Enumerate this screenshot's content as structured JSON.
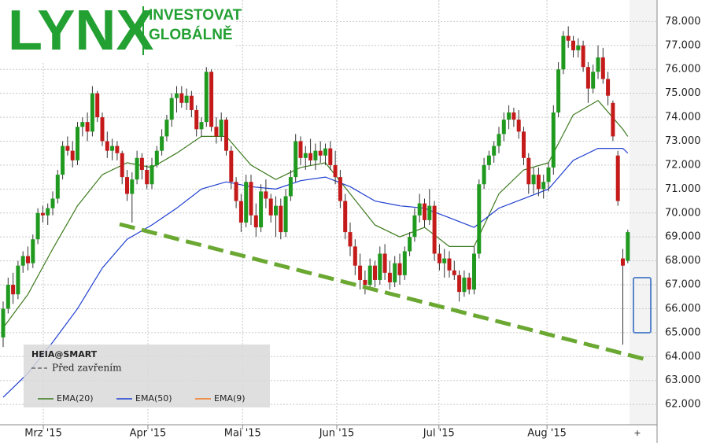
{
  "brand": {
    "logo": "LYNX",
    "tagline_1": "INVESTOVAT",
    "tagline_2": "GLOBÁLNĚ"
  },
  "chart_data": {
    "type": "candlestick",
    "legend_title": "HEIA@SMART",
    "legend_subtitle": "Před zavřením",
    "ylim": [
      61.15,
      78.9
    ],
    "yticks": [
      {
        "value": 62,
        "label": "62.000"
      },
      {
        "value": 63,
        "label": "63.000"
      },
      {
        "value": 64,
        "label": "64.000"
      },
      {
        "value": 65,
        "label": "65.000"
      },
      {
        "value": 66,
        "label": "66.000"
      },
      {
        "value": 67,
        "label": "67.000"
      },
      {
        "value": 68,
        "label": "68.000"
      },
      {
        "value": 69,
        "label": "69.000"
      },
      {
        "value": 70,
        "label": "70.000"
      },
      {
        "value": 71,
        "label": "71.000"
      },
      {
        "value": 72,
        "label": "72.000"
      },
      {
        "value": 73,
        "label": "73.000"
      },
      {
        "value": 74,
        "label": "74.000"
      },
      {
        "value": 75,
        "label": "75.000"
      },
      {
        "value": 76,
        "label": "76.000"
      },
      {
        "value": 77,
        "label": "77.000"
      },
      {
        "value": 78,
        "label": "78.000"
      }
    ],
    "xticks": [
      {
        "value": 8.1,
        "label": "Mrz '15"
      },
      {
        "value": 29.2,
        "label": "Apr '15"
      },
      {
        "value": 48.3,
        "label": "Mai '15"
      },
      {
        "value": 67.3,
        "label": "Jun '15"
      },
      {
        "value": 87.9,
        "label": "Jul '15"
      },
      {
        "value": 109.7,
        "label": "Aug '15"
      }
    ],
    "grid": true,
    "up_color": "#1f9a1f",
    "down_color": "#c41a1a",
    "candles": [
      [
        64.8,
        66.3,
        64.4,
        66.0
      ],
      [
        66.0,
        67.3,
        65.8,
        67.0
      ],
      [
        67.0,
        67.5,
        66.2,
        66.6
      ],
      [
        66.6,
        68.0,
        66.4,
        67.8
      ],
      [
        67.8,
        68.4,
        67.5,
        68.2
      ],
      [
        68.2,
        68.6,
        67.6,
        67.9
      ],
      [
        67.9,
        69.1,
        67.7,
        68.9
      ],
      [
        68.9,
        70.2,
        68.7,
        70.0
      ],
      [
        70.0,
        70.3,
        69.6,
        69.9
      ],
      [
        69.9,
        70.4,
        69.5,
        70.2
      ],
      [
        70.2,
        70.9,
        69.9,
        70.6
      ],
      [
        70.6,
        71.8,
        70.4,
        71.6
      ],
      [
        71.6,
        73.0,
        71.4,
        72.8
      ],
      [
        72.8,
        73.2,
        72.4,
        72.6
      ],
      [
        72.6,
        73.0,
        71.9,
        72.2
      ],
      [
        72.2,
        73.8,
        72.0,
        73.6
      ],
      [
        73.6,
        74.0,
        73.2,
        73.8
      ],
      [
        73.8,
        74.2,
        73.0,
        73.4
      ],
      [
        73.4,
        75.3,
        73.2,
        75.0
      ],
      [
        75.0,
        75.1,
        73.8,
        74.0
      ],
      [
        74.0,
        74.2,
        72.8,
        73.0
      ],
      [
        73.0,
        73.4,
        72.3,
        72.6
      ],
      [
        72.6,
        73.1,
        72.2,
        72.8
      ],
      [
        72.8,
        73.0,
        72.2,
        72.5
      ],
      [
        72.5,
        72.6,
        71.2,
        71.5
      ],
      [
        71.5,
        71.8,
        70.5,
        70.8
      ],
      [
        70.8,
        71.7,
        69.6,
        71.4
      ],
      [
        71.4,
        72.6,
        71.2,
        72.3
      ],
      [
        72.3,
        72.5,
        71.4,
        71.8
      ],
      [
        71.8,
        72.0,
        71.0,
        71.2
      ],
      [
        71.2,
        72.3,
        71.0,
        72.0
      ],
      [
        72.0,
        72.8,
        71.9,
        72.6
      ],
      [
        72.6,
        73.5,
        72.4,
        73.2
      ],
      [
        73.2,
        74.1,
        73.0,
        73.9
      ],
      [
        73.9,
        75.0,
        73.6,
        74.8
      ],
      [
        74.8,
        75.3,
        74.2,
        75.0
      ],
      [
        75.0,
        75.3,
        74.4,
        74.6
      ],
      [
        74.6,
        75.2,
        74.3,
        74.9
      ],
      [
        74.9,
        75.1,
        74.0,
        74.3
      ],
      [
        74.3,
        74.5,
        73.2,
        73.5
      ],
      [
        73.5,
        74.0,
        73.2,
        73.8
      ],
      [
        73.8,
        76.1,
        73.6,
        75.9
      ],
      [
        75.9,
        76.0,
        73.4,
        73.6
      ],
      [
        73.6,
        74.0,
        72.9,
        73.2
      ],
      [
        73.2,
        74.2,
        73.0,
        73.9
      ],
      [
        73.9,
        74.0,
        72.4,
        72.6
      ],
      [
        72.6,
        72.8,
        71.0,
        71.3
      ],
      [
        71.3,
        71.5,
        70.2,
        70.5
      ],
      [
        70.5,
        70.8,
        69.2,
        69.6
      ],
      [
        69.6,
        71.6,
        69.4,
        71.3
      ],
      [
        71.3,
        71.6,
        69.5,
        69.9
      ],
      [
        69.9,
        70.4,
        69.0,
        69.4
      ],
      [
        69.4,
        71.2,
        69.2,
        70.9
      ],
      [
        70.9,
        71.4,
        70.2,
        70.6
      ],
      [
        70.6,
        70.8,
        69.6,
        69.9
      ],
      [
        69.9,
        70.7,
        69.0,
        70.3
      ],
      [
        70.3,
        70.6,
        68.9,
        69.2
      ],
      [
        69.2,
        71.0,
        69.0,
        70.7
      ],
      [
        70.7,
        71.8,
        70.5,
        71.5
      ],
      [
        71.5,
        73.3,
        71.3,
        73.0
      ],
      [
        73.0,
        73.2,
        72.0,
        72.3
      ],
      [
        72.3,
        72.8,
        71.8,
        72.5
      ],
      [
        72.5,
        73.1,
        72.0,
        72.2
      ],
      [
        72.2,
        72.9,
        71.8,
        72.6
      ],
      [
        72.6,
        73.0,
        72.1,
        72.4
      ],
      [
        72.4,
        72.9,
        72.0,
        72.7
      ],
      [
        72.7,
        73.0,
        71.8,
        72.0
      ],
      [
        72.0,
        72.6,
        71.2,
        71.5
      ],
      [
        71.5,
        71.8,
        70.2,
        70.5
      ],
      [
        70.5,
        70.8,
        68.9,
        69.2
      ],
      [
        69.2,
        69.6,
        68.2,
        68.6
      ],
      [
        68.6,
        68.9,
        67.4,
        67.8
      ],
      [
        67.8,
        68.3,
        66.8,
        67.2
      ],
      [
        67.2,
        67.6,
        66.6,
        67.0
      ],
      [
        67.0,
        68.1,
        66.8,
        67.8
      ],
      [
        67.8,
        68.0,
        66.9,
        67.2
      ],
      [
        67.2,
        68.6,
        67.0,
        68.3
      ],
      [
        68.3,
        68.7,
        67.2,
        67.5
      ],
      [
        67.5,
        68.0,
        66.8,
        67.1
      ],
      [
        67.1,
        68.2,
        66.9,
        67.9
      ],
      [
        67.9,
        68.3,
        67.0,
        67.4
      ],
      [
        67.4,
        68.6,
        67.2,
        68.4
      ],
      [
        68.4,
        69.2,
        68.2,
        69.0
      ],
      [
        69.0,
        70.2,
        68.8,
        69.9
      ],
      [
        69.9,
        70.8,
        69.6,
        70.4
      ],
      [
        70.4,
        70.6,
        69.4,
        69.7
      ],
      [
        69.7,
        71.0,
        69.5,
        70.3
      ],
      [
        70.3,
        70.5,
        68.0,
        68.3
      ],
      [
        68.3,
        68.7,
        67.6,
        67.9
      ],
      [
        67.9,
        68.5,
        67.3,
        68.1
      ],
      [
        68.1,
        68.4,
        67.3,
        67.6
      ],
      [
        67.6,
        68.0,
        67.2,
        67.4
      ],
      [
        67.4,
        67.6,
        66.3,
        66.7
      ],
      [
        66.7,
        67.6,
        66.5,
        67.3
      ],
      [
        67.3,
        67.5,
        66.6,
        66.8
      ],
      [
        66.8,
        68.6,
        66.6,
        68.3
      ],
      [
        68.3,
        71.4,
        68.1,
        71.2
      ],
      [
        71.2,
        72.3,
        71.0,
        72.0
      ],
      [
        72.0,
        72.6,
        71.8,
        72.4
      ],
      [
        72.4,
        73.0,
        72.1,
        72.8
      ],
      [
        72.8,
        73.6,
        72.5,
        73.3
      ],
      [
        73.3,
        74.2,
        73.0,
        73.9
      ],
      [
        73.9,
        74.5,
        73.5,
        74.2
      ],
      [
        74.2,
        74.4,
        73.6,
        73.9
      ],
      [
        73.9,
        74.3,
        73.1,
        73.4
      ],
      [
        73.4,
        73.6,
        72.0,
        72.3
      ],
      [
        72.3,
        72.5,
        70.8,
        71.2
      ],
      [
        71.2,
        71.9,
        70.8,
        71.6
      ],
      [
        71.6,
        71.9,
        70.7,
        71.0
      ],
      [
        71.0,
        71.6,
        70.6,
        71.3
      ],
      [
        71.3,
        72.1,
        70.9,
        71.9
      ],
      [
        71.9,
        74.5,
        71.6,
        74.2
      ],
      [
        74.2,
        76.3,
        74.0,
        76.0
      ],
      [
        76.0,
        77.6,
        75.8,
        77.4
      ],
      [
        77.4,
        77.8,
        76.9,
        77.2
      ],
      [
        77.2,
        77.4,
        76.5,
        76.8
      ],
      [
        76.8,
        77.3,
        76.5,
        77.0
      ],
      [
        77.0,
        77.2,
        75.9,
        76.1
      ],
      [
        76.1,
        76.3,
        74.6,
        75.2
      ],
      [
        75.2,
        76.2,
        75.0,
        75.9
      ],
      [
        75.9,
        77.0,
        75.6,
        76.5
      ],
      [
        76.5,
        76.9,
        75.4,
        75.6
      ],
      [
        75.6,
        75.9,
        74.5,
        74.9
      ],
      [
        74.6,
        74.7,
        73.0,
        73.2
      ],
      [
        72.4,
        72.6,
        70.3,
        70.5
      ],
      [
        68.1,
        68.5,
        64.5,
        67.8
      ],
      [
        68.0,
        69.3,
        67.9,
        69.2
      ]
    ],
    "series": [
      {
        "name": "EMA(20)",
        "color": "#3d7a1e",
        "x": [
          0,
          5,
          10,
          15,
          20,
          25,
          30,
          35,
          40,
          45,
          50,
          55,
          60,
          65,
          70,
          75,
          80,
          85,
          90,
          95,
          100,
          105,
          110,
          115,
          120,
          125,
          126
        ],
        "values": [
          65.2,
          66.6,
          68.5,
          70.3,
          71.6,
          72.1,
          71.9,
          72.5,
          73.2,
          73.2,
          72.0,
          71.4,
          71.9,
          72.1,
          70.8,
          69.5,
          69.0,
          69.4,
          68.6,
          68.6,
          70.8,
          71.8,
          72.1,
          74.1,
          74.7,
          73.5,
          73.2
        ]
      },
      {
        "name": "EMA(50)",
        "color": "#1f3fd0",
        "x": [
          0,
          5,
          10,
          15,
          20,
          25,
          30,
          35,
          40,
          45,
          50,
          55,
          60,
          65,
          70,
          75,
          80,
          85,
          90,
          95,
          100,
          105,
          110,
          115,
          120,
          125,
          126
        ],
        "values": [
          62.3,
          63.3,
          64.6,
          66.0,
          67.7,
          68.9,
          69.5,
          70.2,
          71.0,
          71.3,
          71.1,
          71.0,
          71.35,
          71.5,
          71.1,
          70.5,
          70.3,
          70.2,
          69.8,
          69.4,
          70.2,
          70.6,
          71.0,
          72.2,
          72.7,
          72.7,
          72.5
        ]
      },
      {
        "name": "EMA(9)",
        "color": "#f07820"
      }
    ]
  }
}
